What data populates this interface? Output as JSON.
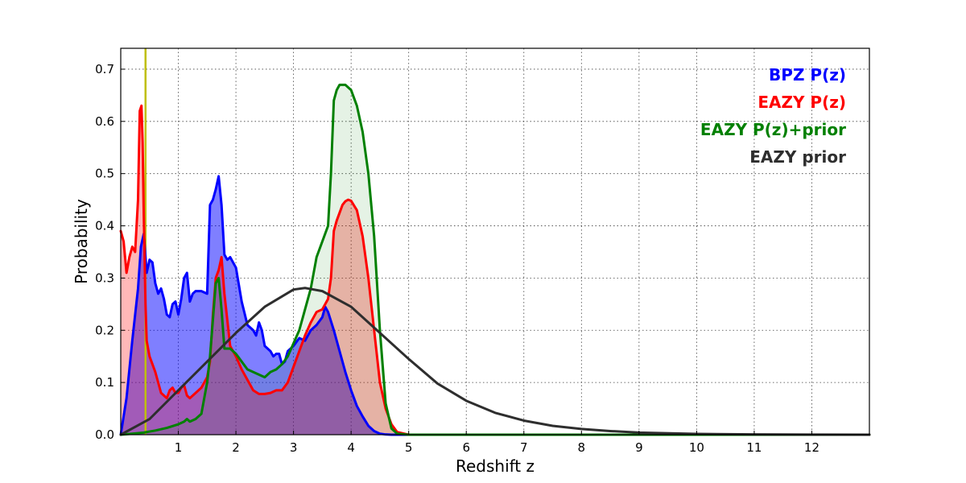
{
  "chart_data": {
    "type": "line",
    "xlabel": "Redshift z",
    "ylabel": "Probability",
    "xlim": [
      0,
      13
    ],
    "ylim": [
      0,
      0.74
    ],
    "xticks": [
      1,
      2,
      3,
      4,
      5,
      6,
      7,
      8,
      9,
      10,
      11,
      12
    ],
    "yticks": [
      0.0,
      0.1,
      0.2,
      0.3,
      0.4,
      0.5,
      0.6,
      0.7
    ],
    "grid": true,
    "legend_position": "top-right",
    "vertical_line": {
      "x": 0.43,
      "color": "#bfbf00"
    },
    "series": [
      {
        "name": "BPZ P(z)",
        "color": "#0000ff",
        "fill": "#0000ff",
        "fill_opacity": 0.5,
        "x": [
          0,
          0.1,
          0.2,
          0.3,
          0.35,
          0.4,
          0.45,
          0.5,
          0.55,
          0.6,
          0.65,
          0.7,
          0.75,
          0.8,
          0.85,
          0.9,
          0.95,
          1.0,
          1.05,
          1.1,
          1.15,
          1.2,
          1.25,
          1.3,
          1.35,
          1.4,
          1.5,
          1.55,
          1.6,
          1.65,
          1.7,
          1.75,
          1.8,
          1.85,
          1.9,
          2.0,
          2.1,
          2.2,
          2.3,
          2.35,
          2.4,
          2.45,
          2.5,
          2.6,
          2.65,
          2.7,
          2.75,
          2.8,
          2.85,
          2.9,
          3.0,
          3.1,
          3.2,
          3.3,
          3.4,
          3.5,
          3.55,
          3.6,
          3.7,
          3.8,
          3.9,
          4.0,
          4.1,
          4.2,
          4.3,
          4.4,
          4.5,
          4.6,
          4.7,
          5.0,
          13.0
        ],
        "y": [
          0,
          0.07,
          0.18,
          0.28,
          0.36,
          0.385,
          0.31,
          0.335,
          0.33,
          0.29,
          0.27,
          0.28,
          0.26,
          0.23,
          0.225,
          0.25,
          0.255,
          0.23,
          0.26,
          0.3,
          0.31,
          0.255,
          0.27,
          0.275,
          0.275,
          0.275,
          0.27,
          0.44,
          0.45,
          0.47,
          0.495,
          0.44,
          0.345,
          0.335,
          0.34,
          0.32,
          0.255,
          0.21,
          0.2,
          0.19,
          0.215,
          0.2,
          0.17,
          0.16,
          0.15,
          0.155,
          0.155,
          0.135,
          0.14,
          0.16,
          0.17,
          0.185,
          0.18,
          0.2,
          0.21,
          0.225,
          0.245,
          0.235,
          0.2,
          0.16,
          0.12,
          0.085,
          0.055,
          0.035,
          0.017,
          0.007,
          0.002,
          0.0005,
          0,
          0,
          0
        ]
      },
      {
        "name": "EAZY P(z)",
        "color": "#ff0000",
        "fill": "#ff0000",
        "fill_opacity": 0.28,
        "x": [
          0,
          0.05,
          0.1,
          0.15,
          0.2,
          0.25,
          0.3,
          0.33,
          0.36,
          0.38,
          0.4,
          0.43,
          0.45,
          0.5,
          0.6,
          0.7,
          0.8,
          0.85,
          0.9,
          0.95,
          1.0,
          1.05,
          1.1,
          1.15,
          1.2,
          1.3,
          1.4,
          1.5,
          1.55,
          1.6,
          1.65,
          1.7,
          1.75,
          1.8,
          1.9,
          2.0,
          2.1,
          2.2,
          2.3,
          2.4,
          2.5,
          2.6,
          2.7,
          2.8,
          2.9,
          3.0,
          3.1,
          3.2,
          3.3,
          3.4,
          3.5,
          3.6,
          3.65,
          3.7,
          3.75,
          3.8,
          3.85,
          3.9,
          3.95,
          4.0,
          4.1,
          4.2,
          4.3,
          4.4,
          4.5,
          4.6,
          4.7,
          4.8,
          5.0,
          13.0
        ],
        "y": [
          0.39,
          0.37,
          0.31,
          0.34,
          0.36,
          0.35,
          0.45,
          0.62,
          0.63,
          0.56,
          0.42,
          0.25,
          0.18,
          0.15,
          0.12,
          0.08,
          0.07,
          0.085,
          0.09,
          0.08,
          0.08,
          0.09,
          0.095,
          0.075,
          0.07,
          0.08,
          0.09,
          0.11,
          0.14,
          0.23,
          0.3,
          0.315,
          0.34,
          0.27,
          0.17,
          0.15,
          0.125,
          0.105,
          0.085,
          0.078,
          0.078,
          0.08,
          0.085,
          0.085,
          0.1,
          0.13,
          0.16,
          0.19,
          0.215,
          0.235,
          0.24,
          0.26,
          0.3,
          0.39,
          0.41,
          0.425,
          0.44,
          0.447,
          0.45,
          0.448,
          0.43,
          0.38,
          0.3,
          0.2,
          0.1,
          0.05,
          0.02,
          0.005,
          0,
          0
        ]
      },
      {
        "name": "EAZY P(z)+prior",
        "color": "#008000",
        "fill": "#008000",
        "fill_opacity": 0.1,
        "x": [
          0,
          0.2,
          0.4,
          0.6,
          0.8,
          1.0,
          1.1,
          1.15,
          1.2,
          1.3,
          1.4,
          1.5,
          1.55,
          1.6,
          1.65,
          1.7,
          1.75,
          1.8,
          1.9,
          2.0,
          2.1,
          2.2,
          2.3,
          2.4,
          2.5,
          2.6,
          2.7,
          2.8,
          2.9,
          3.0,
          3.1,
          3.2,
          3.3,
          3.4,
          3.5,
          3.6,
          3.65,
          3.7,
          3.75,
          3.8,
          3.9,
          4.0,
          4.1,
          4.2,
          4.3,
          4.4,
          4.5,
          4.6,
          4.7,
          4.8,
          5.0,
          13.0
        ],
        "y": [
          0,
          0.002,
          0.004,
          0.008,
          0.013,
          0.02,
          0.025,
          0.03,
          0.025,
          0.03,
          0.04,
          0.1,
          0.15,
          0.22,
          0.29,
          0.3,
          0.24,
          0.165,
          0.165,
          0.155,
          0.14,
          0.125,
          0.12,
          0.115,
          0.11,
          0.12,
          0.125,
          0.135,
          0.15,
          0.175,
          0.2,
          0.24,
          0.28,
          0.34,
          0.37,
          0.4,
          0.5,
          0.64,
          0.66,
          0.67,
          0.67,
          0.66,
          0.63,
          0.58,
          0.5,
          0.38,
          0.2,
          0.06,
          0.012,
          0.002,
          0,
          0
        ]
      },
      {
        "name": "EAZY prior",
        "color": "#2e2e2e",
        "fill": null,
        "fill_opacity": 0,
        "x": [
          0,
          0.5,
          1.0,
          1.5,
          2.0,
          2.5,
          3.0,
          3.2,
          3.5,
          4.0,
          4.5,
          5.0,
          5.5,
          6.0,
          6.5,
          7.0,
          7.5,
          8.0,
          8.5,
          9.0,
          10.0,
          11.0,
          12.0,
          13.0
        ],
        "y": [
          0.0,
          0.03,
          0.085,
          0.14,
          0.195,
          0.245,
          0.278,
          0.281,
          0.275,
          0.245,
          0.195,
          0.145,
          0.098,
          0.065,
          0.042,
          0.027,
          0.017,
          0.011,
          0.007,
          0.004,
          0.0015,
          0.0005,
          0.0002,
          0.0
        ]
      }
    ]
  }
}
